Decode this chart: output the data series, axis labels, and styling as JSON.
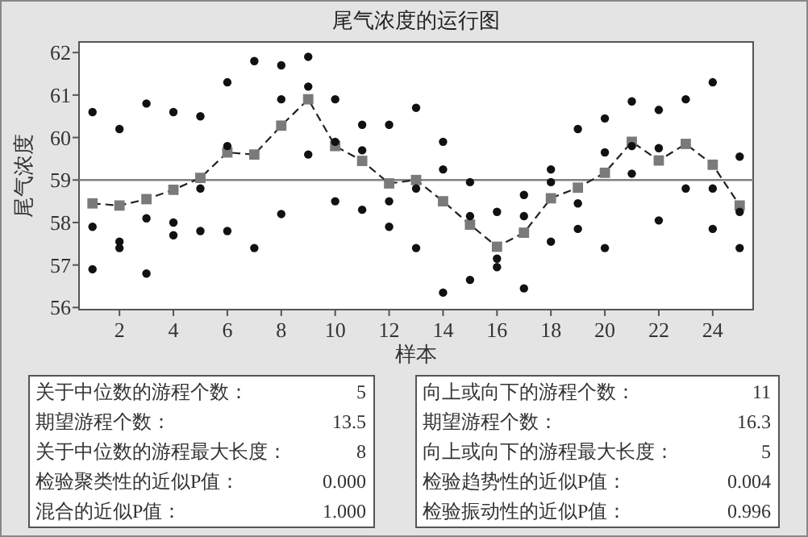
{
  "chart_data": {
    "type": "scatter",
    "title": "尾气浓度的运行图",
    "xlabel": "样本",
    "ylabel": "尾气浓度",
    "xlim": [
      0.5,
      25.5
    ],
    "xticks": [
      2,
      4,
      6,
      8,
      10,
      12,
      14,
      16,
      18,
      20,
      22,
      24
    ],
    "ylim": [
      55.95,
      62.25
    ],
    "yticks": [
      56,
      57,
      58,
      59,
      60,
      61,
      62
    ],
    "grid": false,
    "ref_lines": [
      {
        "axis": "y",
        "value": 59,
        "color": "#808080",
        "line_style": "solid"
      }
    ],
    "series": [
      {
        "color": "#111111",
        "marker": "circle",
        "x": [
          1,
          1,
          1,
          2,
          2,
          2,
          3,
          3,
          3,
          4,
          4,
          4,
          5,
          5,
          5,
          6,
          6,
          6,
          7,
          7,
          8,
          8,
          8,
          9,
          9,
          9,
          10,
          10,
          10,
          11,
          11,
          11,
          12,
          12,
          12,
          13,
          13,
          13,
          14,
          14,
          14,
          15,
          15,
          15,
          16,
          16,
          16,
          17,
          17,
          17,
          18,
          18,
          18,
          19,
          19,
          19,
          20,
          20,
          20,
          21,
          21,
          21,
          22,
          22,
          22,
          23,
          23,
          24,
          24,
          24,
          25,
          25,
          25
        ],
        "values": [
          60.6,
          57.9,
          56.9,
          60.2,
          57.55,
          57.4,
          60.8,
          58.1,
          56.8,
          60.6,
          58.0,
          57.7,
          60.5,
          58.8,
          57.8,
          61.3,
          59.8,
          57.8,
          61.8,
          57.4,
          61.7,
          60.9,
          58.2,
          61.9,
          61.2,
          59.6,
          60.9,
          59.9,
          58.5,
          60.3,
          59.7,
          58.3,
          60.3,
          58.5,
          57.9,
          60.7,
          58.8,
          57.4,
          59.9,
          59.25,
          56.35,
          58.95,
          58.15,
          56.65,
          58.25,
          57.15,
          56.95,
          58.65,
          58.15,
          56.45,
          59.25,
          58.95,
          57.55,
          60.2,
          58.45,
          57.85,
          60.45,
          59.65,
          57.4,
          60.85,
          59.8,
          59.15,
          60.65,
          59.75,
          58.05,
          60.9,
          58.8,
          61.3,
          58.8,
          57.85,
          59.55,
          58.25,
          57.4
        ]
      },
      {
        "type": "line",
        "color": "#7a7a7a",
        "marker": "square",
        "line_style": "dashed",
        "x": [
          1,
          2,
          3,
          4,
          5,
          6,
          7,
          8,
          9,
          10,
          11,
          12,
          13,
          14,
          15,
          16,
          17,
          18,
          19,
          20,
          21,
          22,
          23,
          24,
          25
        ],
        "values": [
          58.45,
          58.4,
          58.55,
          58.77,
          59.05,
          59.65,
          59.6,
          60.28,
          60.9,
          59.8,
          59.45,
          58.92,
          59.0,
          58.5,
          57.95,
          57.43,
          57.76,
          58.57,
          58.82,
          59.17,
          59.9,
          59.46,
          59.85,
          59.36,
          58.4
        ]
      }
    ],
    "annotations": [
      "关于中位数的游程个数：",
      "5",
      "期望游程个数：",
      "13.5",
      "关于中位数的游程最大长度：",
      "8",
      "检验聚类性的近似P值：",
      "0.000",
      "混合的近似P值：",
      "1.000",
      "向上或向下的游程个数：",
      "11",
      "期望游程个数：",
      "16.3",
      "向上或向下的游程最大长度：",
      "5",
      "检验趋势性的近似P值：",
      "0.004",
      "检验振动性的近似P值：",
      "0.996"
    ]
  }
}
